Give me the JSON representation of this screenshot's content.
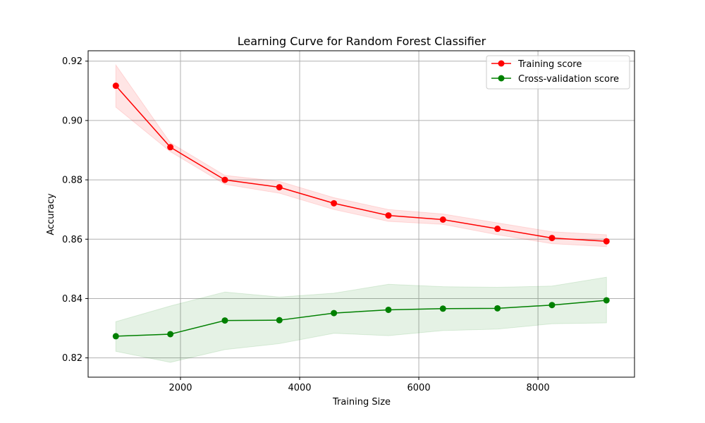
{
  "chart_data": {
    "type": "line",
    "title": "Learning Curve for Random Forest Classifier",
    "xlabel": "Training Size",
    "ylabel": "Accuracy",
    "xlim": [
      450,
      9620
    ],
    "ylim": [
      0.8135,
      0.9235
    ],
    "xticks": [
      2000,
      4000,
      6000,
      8000
    ],
    "yticks": [
      0.82,
      0.84,
      0.86,
      0.88,
      0.9,
      0.92
    ],
    "xtick_labels": [
      "2000",
      "4000",
      "6000",
      "8000"
    ],
    "ytick_labels": [
      "0.82",
      "0.84",
      "0.86",
      "0.88",
      "0.90",
      "0.92"
    ],
    "grid": true,
    "legend_position": "top-right",
    "x": [
      915,
      1830,
      2745,
      3660,
      4575,
      5490,
      6405,
      7320,
      8235,
      9150
    ],
    "series": [
      {
        "name": "Training score",
        "color": "#ff0000",
        "band_color": "#ff0000",
        "values": [
          0.9117,
          0.891,
          0.88,
          0.8775,
          0.8721,
          0.868,
          0.8666,
          0.8635,
          0.8604,
          0.8593
        ],
        "band_lower": [
          0.9045,
          0.8895,
          0.8785,
          0.8755,
          0.87,
          0.866,
          0.865,
          0.8615,
          0.8585,
          0.8575
        ],
        "band_upper": [
          0.9187,
          0.8925,
          0.8815,
          0.8795,
          0.874,
          0.87,
          0.8685,
          0.8655,
          0.8625,
          0.8615
        ]
      },
      {
        "name": "Cross-validation score",
        "color": "#008000",
        "band_color": "#008000",
        "values": [
          0.8273,
          0.828,
          0.8326,
          0.8327,
          0.8351,
          0.8362,
          0.8366,
          0.8367,
          0.8378,
          0.8394
        ],
        "band_lower": [
          0.8222,
          0.8185,
          0.8228,
          0.8248,
          0.8283,
          0.8275,
          0.8292,
          0.8297,
          0.8315,
          0.8318
        ],
        "band_upper": [
          0.8322,
          0.8375,
          0.8422,
          0.8405,
          0.8418,
          0.8448,
          0.844,
          0.8438,
          0.8442,
          0.8472
        ]
      }
    ]
  }
}
